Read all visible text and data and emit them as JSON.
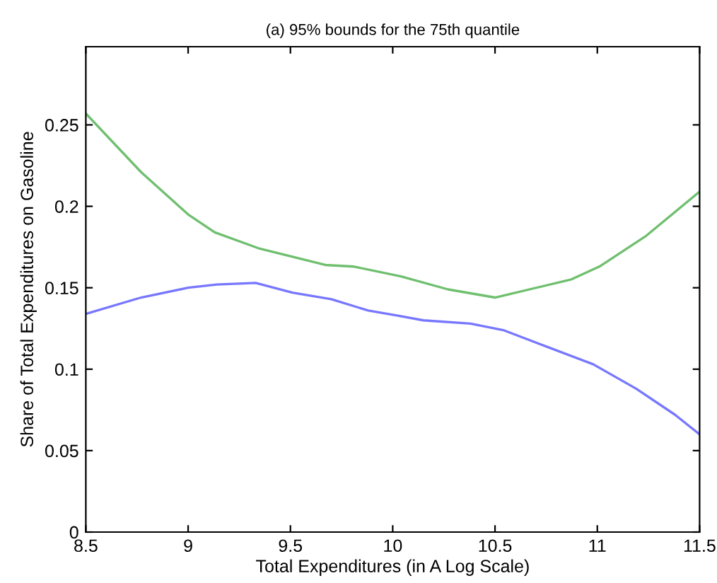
{
  "chart_data": {
    "type": "line",
    "title": "(a) 95% bounds for the 75th quantile",
    "xlabel": "Total Expenditures (in A Log Scale)",
    "ylabel": "Share of Total Expenditures on Gasoline",
    "series": [
      {
        "color": "#6fbf6f",
        "x": [
          8.5,
          8.77,
          9.0,
          9.13,
          9.35,
          9.67,
          9.81,
          10.04,
          10.27,
          10.5,
          10.87,
          11.01,
          11.24,
          11.5
        ],
        "values": [
          0.257,
          0.221,
          0.195,
          0.184,
          0.174,
          0.164,
          0.163,
          0.157,
          0.149,
          0.144,
          0.155,
          0.163,
          0.182,
          0.209
        ]
      },
      {
        "color": "#7777ff",
        "x": [
          8.5,
          8.77,
          9.0,
          9.14,
          9.33,
          9.51,
          9.7,
          9.88,
          10.02,
          10.15,
          10.38,
          10.54,
          10.77,
          10.98,
          11.19,
          11.38,
          11.5
        ],
        "values": [
          0.134,
          0.144,
          0.15,
          0.152,
          0.153,
          0.147,
          0.143,
          0.136,
          0.133,
          0.13,
          0.128,
          0.124,
          0.113,
          0.103,
          0.088,
          0.072,
          0.06
        ]
      }
    ],
    "xlim": [
      8.5,
      11.5
    ],
    "ylim": [
      0,
      0.298
    ],
    "xticks": [
      8.5,
      9,
      9.5,
      10,
      10.5,
      11,
      11.5
    ],
    "yticks": [
      0,
      0.05,
      0.1,
      0.15,
      0.2,
      0.25
    ],
    "grid": false,
    "legend": false
  }
}
